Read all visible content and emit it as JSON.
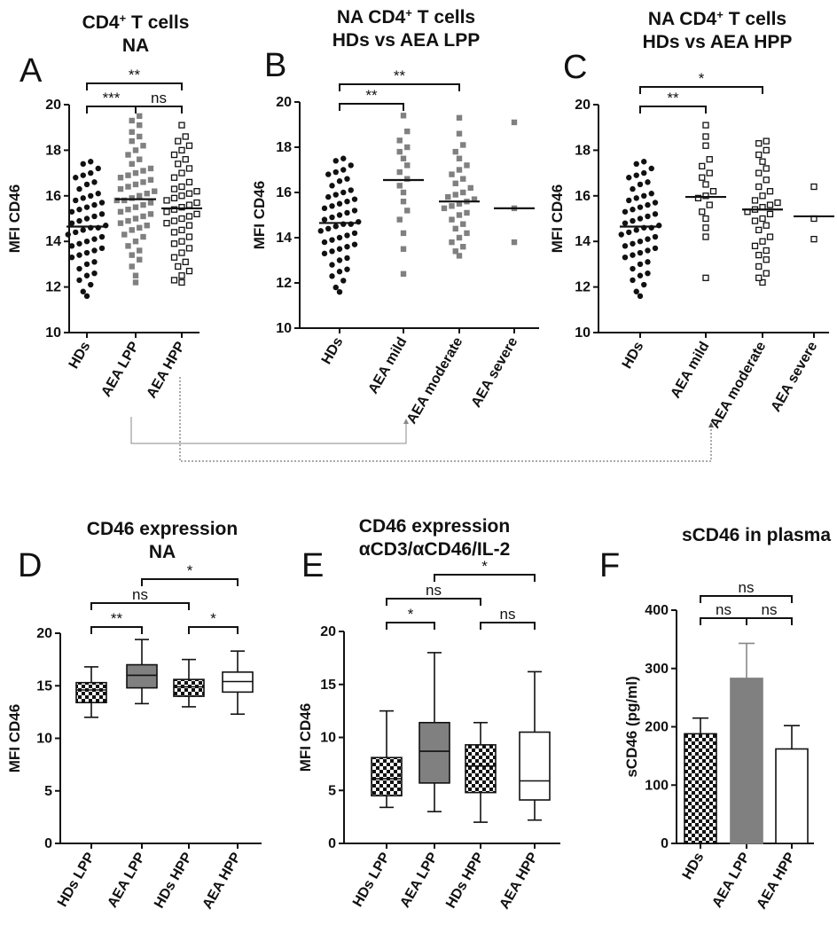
{
  "figure": {
    "link_lines": [
      "AEA LPP -> AEA moderate (B)",
      "AEA HPP -> AEA moderate (C)"
    ]
  },
  "chart_data": [
    {
      "panel": "A",
      "type": "scatter",
      "title_lines": [
        "CD4+ T cells",
        "NA"
      ],
      "ylabel": "MFI CD46",
      "ylim": [
        10,
        20
      ],
      "yticks": [
        10,
        12,
        14,
        16,
        18,
        20
      ],
      "categories": [
        "HDs",
        "AEA LPP",
        "AEA HPP"
      ],
      "series": [
        {
          "name": "HDs",
          "marker": "circle",
          "median": 14.65,
          "values": [
            11.6,
            11.8,
            12.1,
            12.3,
            12.5,
            12.6,
            12.8,
            13.0,
            13.1,
            13.3,
            13.4,
            13.5,
            13.6,
            13.7,
            13.8,
            13.9,
            14.0,
            14.1,
            14.2,
            14.3,
            14.4,
            14.5,
            14.6,
            14.6,
            14.7,
            14.8,
            14.9,
            15.0,
            15.1,
            15.2,
            15.3,
            15.4,
            15.5,
            15.6,
            15.7,
            15.8,
            15.9,
            16.0,
            16.1,
            16.3,
            16.5,
            16.6,
            16.8,
            16.9,
            17.0,
            17.2,
            17.4,
            17.5
          ]
        },
        {
          "name": "AEA LPP",
          "marker": "square-gray",
          "median": 15.85,
          "values": [
            12.2,
            12.5,
            12.9,
            13.2,
            13.4,
            13.6,
            13.8,
            14.0,
            14.2,
            14.3,
            14.5,
            14.6,
            14.7,
            14.8,
            14.9,
            15.0,
            15.1,
            15.2,
            15.3,
            15.4,
            15.5,
            15.6,
            15.7,
            15.8,
            15.8,
            15.9,
            16.0,
            16.1,
            16.2,
            16.3,
            16.4,
            16.5,
            16.6,
            16.7,
            16.8,
            16.9,
            17.0,
            17.1,
            17.2,
            17.4,
            17.6,
            17.8,
            18.0,
            18.2,
            18.4,
            18.6,
            18.8,
            19.1,
            19.3,
            19.5
          ]
        },
        {
          "name": "AEA HPP",
          "marker": "square-open",
          "median": 15.45,
          "values": [
            12.2,
            12.3,
            12.5,
            12.7,
            12.9,
            13.1,
            13.3,
            13.5,
            13.7,
            13.9,
            14.0,
            14.2,
            14.4,
            14.5,
            14.7,
            14.8,
            14.9,
            15.0,
            15.1,
            15.2,
            15.3,
            15.4,
            15.5,
            15.6,
            15.7,
            15.8,
            15.9,
            16.0,
            16.1,
            16.2,
            16.3,
            16.4,
            16.6,
            16.8,
            17.0,
            17.2,
            17.4,
            17.6,
            17.8,
            18.0,
            18.2,
            18.4,
            18.6,
            19.1
          ]
        }
      ],
      "brackets": [
        {
          "from": 0,
          "to": 1,
          "label": "***",
          "level": 0
        },
        {
          "from": 1,
          "to": 2,
          "label": "ns",
          "level": 0
        },
        {
          "from": 0,
          "to": 2,
          "label": "**",
          "level": 1
        }
      ]
    },
    {
      "panel": "B",
      "type": "scatter",
      "title_lines": [
        "NA CD4+ T cells",
        "HDs vs AEA LPP"
      ],
      "ylabel": "MFI CD46",
      "ylim": [
        10,
        20
      ],
      "yticks": [
        10,
        12,
        14,
        16,
        18,
        20
      ],
      "categories": [
        "HDs",
        "AEA mild",
        "AEA moderate",
        "AEA severe"
      ],
      "series": [
        {
          "name": "HDs",
          "marker": "circle",
          "median": 14.65,
          "values": [
            11.6,
            11.8,
            12.1,
            12.3,
            12.5,
            12.6,
            12.8,
            13.0,
            13.1,
            13.3,
            13.4,
            13.5,
            13.6,
            13.7,
            13.8,
            13.9,
            14.0,
            14.1,
            14.2,
            14.3,
            14.4,
            14.5,
            14.6,
            14.6,
            14.7,
            14.8,
            14.9,
            15.0,
            15.1,
            15.2,
            15.3,
            15.4,
            15.5,
            15.6,
            15.7,
            15.8,
            15.9,
            16.0,
            16.1,
            16.3,
            16.5,
            16.6,
            16.8,
            16.9,
            17.0,
            17.2,
            17.4,
            17.5
          ]
        },
        {
          "name": "AEA mild",
          "marker": "square-gray",
          "median": 16.55,
          "values": [
            12.4,
            13.5,
            14.2,
            14.8,
            15.2,
            15.6,
            16.0,
            16.3,
            16.6,
            16.9,
            17.2,
            17.5,
            17.8,
            18.0,
            18.3,
            18.7,
            19.4
          ]
        },
        {
          "name": "AEA moderate",
          "marker": "square-gray",
          "median": 15.6,
          "values": [
            13.2,
            13.4,
            13.6,
            13.8,
            14.0,
            14.2,
            14.4,
            14.6,
            14.8,
            15.0,
            15.1,
            15.3,
            15.4,
            15.5,
            15.6,
            15.7,
            15.8,
            15.9,
            16.0,
            16.2,
            16.4,
            16.6,
            16.8,
            17.0,
            17.2,
            17.5,
            17.8,
            18.1,
            18.6,
            19.3
          ]
        },
        {
          "name": "AEA severe",
          "marker": "square-gray",
          "median": 15.3,
          "values": [
            13.8,
            15.3,
            19.1
          ]
        }
      ],
      "brackets": [
        {
          "from": 0,
          "to": 1,
          "label": "**",
          "level": 0
        },
        {
          "from": 0,
          "to": 2,
          "label": "**",
          "level": 1
        }
      ]
    },
    {
      "panel": "C",
      "type": "scatter",
      "title_lines": [
        "NA CD4+ T cells",
        "HDs vs AEA HPP"
      ],
      "ylabel": "MFI CD46",
      "ylim": [
        10,
        20
      ],
      "yticks": [
        10,
        12,
        14,
        16,
        18,
        20
      ],
      "categories": [
        "HDs",
        "AEA mild",
        "AEA moderate",
        "AEA severe"
      ],
      "series": [
        {
          "name": "HDs",
          "marker": "circle",
          "median": 14.65,
          "values": [
            11.6,
            11.8,
            12.1,
            12.3,
            12.5,
            12.6,
            12.8,
            13.0,
            13.1,
            13.3,
            13.4,
            13.5,
            13.6,
            13.7,
            13.8,
            13.9,
            14.0,
            14.1,
            14.2,
            14.3,
            14.4,
            14.5,
            14.6,
            14.6,
            14.7,
            14.8,
            14.9,
            15.0,
            15.1,
            15.2,
            15.3,
            15.4,
            15.5,
            15.6,
            15.7,
            15.8,
            15.9,
            16.0,
            16.1,
            16.3,
            16.5,
            16.6,
            16.8,
            16.9,
            17.0,
            17.2,
            17.4,
            17.5
          ]
        },
        {
          "name": "AEA mild",
          "marker": "square-open",
          "median": 15.95,
          "values": [
            12.4,
            14.2,
            14.6,
            15.0,
            15.3,
            15.6,
            15.9,
            16.0,
            16.2,
            16.5,
            16.8,
            17.0,
            17.3,
            17.6,
            18.2,
            18.6,
            19.1
          ]
        },
        {
          "name": "AEA moderate",
          "marker": "square-open",
          "median": 15.4,
          "values": [
            12.2,
            12.4,
            12.6,
            12.9,
            13.2,
            13.4,
            13.6,
            13.8,
            14.0,
            14.2,
            14.5,
            14.7,
            14.9,
            15.0,
            15.2,
            15.3,
            15.4,
            15.5,
            15.6,
            15.7,
            15.8,
            16.0,
            16.2,
            16.4,
            16.7,
            17.0,
            17.2,
            17.5,
            17.8,
            18.0,
            18.3,
            18.4
          ]
        },
        {
          "name": "AEA severe",
          "marker": "square-open",
          "median": 15.1,
          "values": [
            14.1,
            15.0,
            16.4
          ]
        }
      ],
      "brackets": [
        {
          "from": 0,
          "to": 1,
          "label": "**",
          "level": 0
        },
        {
          "from": 0,
          "to": 2,
          "label": "*",
          "level": 1
        }
      ]
    },
    {
      "panel": "D",
      "type": "box",
      "title_lines": [
        "CD46 expression",
        "NA"
      ],
      "ylabel": "MFI CD46",
      "ylim": [
        0,
        20
      ],
      "yticks": [
        0,
        5,
        10,
        15,
        20
      ],
      "categories": [
        "HDs LPP",
        "AEA LPP",
        "HDs HPP",
        "AEA HPP"
      ],
      "boxes": [
        {
          "name": "HDs LPP",
          "fill": "checker",
          "min": 12.0,
          "q1": 13.4,
          "median": 14.6,
          "q3": 15.3,
          "max": 16.8
        },
        {
          "name": "AEA LPP",
          "fill": "gray",
          "min": 13.3,
          "q1": 14.8,
          "median": 16.0,
          "q3": 17.0,
          "max": 19.4
        },
        {
          "name": "HDs HPP",
          "fill": "checker",
          "min": 13.0,
          "q1": 14.0,
          "median": 14.9,
          "q3": 15.6,
          "max": 17.5
        },
        {
          "name": "AEA HPP",
          "fill": "white",
          "min": 12.3,
          "q1": 14.4,
          "median": 15.4,
          "q3": 16.3,
          "max": 18.3
        }
      ],
      "brackets": [
        {
          "from": 0,
          "to": 1,
          "label": "**",
          "level": 0
        },
        {
          "from": 2,
          "to": 3,
          "label": "*",
          "level": 0
        },
        {
          "from": 0,
          "to": 2,
          "label": "ns",
          "level": 1
        },
        {
          "from": 1,
          "to": 3,
          "label": "*",
          "level": 2
        }
      ]
    },
    {
      "panel": "E",
      "type": "box",
      "title_lines": [
        "CD46 expression",
        "αCD3/αCD46/IL-2"
      ],
      "ylabel": "MFI CD46",
      "ylim": [
        0,
        20
      ],
      "yticks": [
        0,
        5,
        10,
        15,
        20
      ],
      "categories": [
        "HDs LPP",
        "AEA LPP",
        "HDs HPP",
        "AEA HPP"
      ],
      "boxes": [
        {
          "name": "HDs LPP",
          "fill": "checker",
          "min": 3.4,
          "q1": 4.5,
          "median": 6.1,
          "q3": 8.1,
          "max": 12.5
        },
        {
          "name": "AEA LPP",
          "fill": "gray",
          "min": 3.0,
          "q1": 5.7,
          "median": 8.7,
          "q3": 11.4,
          "max": 18.0
        },
        {
          "name": "HDs HPP",
          "fill": "checker",
          "min": 2.0,
          "q1": 4.8,
          "median": 7.3,
          "q3": 9.3,
          "max": 11.4
        },
        {
          "name": "AEA HPP",
          "fill": "white",
          "min": 2.2,
          "q1": 4.1,
          "median": 5.9,
          "q3": 10.5,
          "max": 16.2
        }
      ],
      "brackets": [
        {
          "from": 0,
          "to": 1,
          "label": "*",
          "level": 0
        },
        {
          "from": 2,
          "to": 3,
          "label": "ns",
          "level": 0
        },
        {
          "from": 0,
          "to": 2,
          "label": "ns",
          "level": 1
        },
        {
          "from": 1,
          "to": 3,
          "label": "*",
          "level": 2
        }
      ]
    },
    {
      "panel": "F",
      "type": "bar",
      "title_lines": [
        "sCD46 in plasma"
      ],
      "ylabel": "sCD46 (pg/ml)",
      "ylim": [
        0,
        400
      ],
      "yticks": [
        0,
        100,
        200,
        300,
        400
      ],
      "categories": [
        "HDs",
        "AEA LPP",
        "AEA HPP"
      ],
      "bars": [
        {
          "name": "HDs",
          "fill": "checker",
          "value": 188,
          "error": 27
        },
        {
          "name": "AEA LPP",
          "fill": "gray",
          "value": 283,
          "error": 60
        },
        {
          "name": "AEA HPP",
          "fill": "white",
          "value": 162,
          "error": 40
        }
      ],
      "brackets": [
        {
          "from": 0,
          "to": 1,
          "label": "ns",
          "level": 0
        },
        {
          "from": 1,
          "to": 2,
          "label": "ns",
          "level": 0
        },
        {
          "from": 0,
          "to": 2,
          "label": "ns",
          "level": 1
        }
      ]
    }
  ]
}
